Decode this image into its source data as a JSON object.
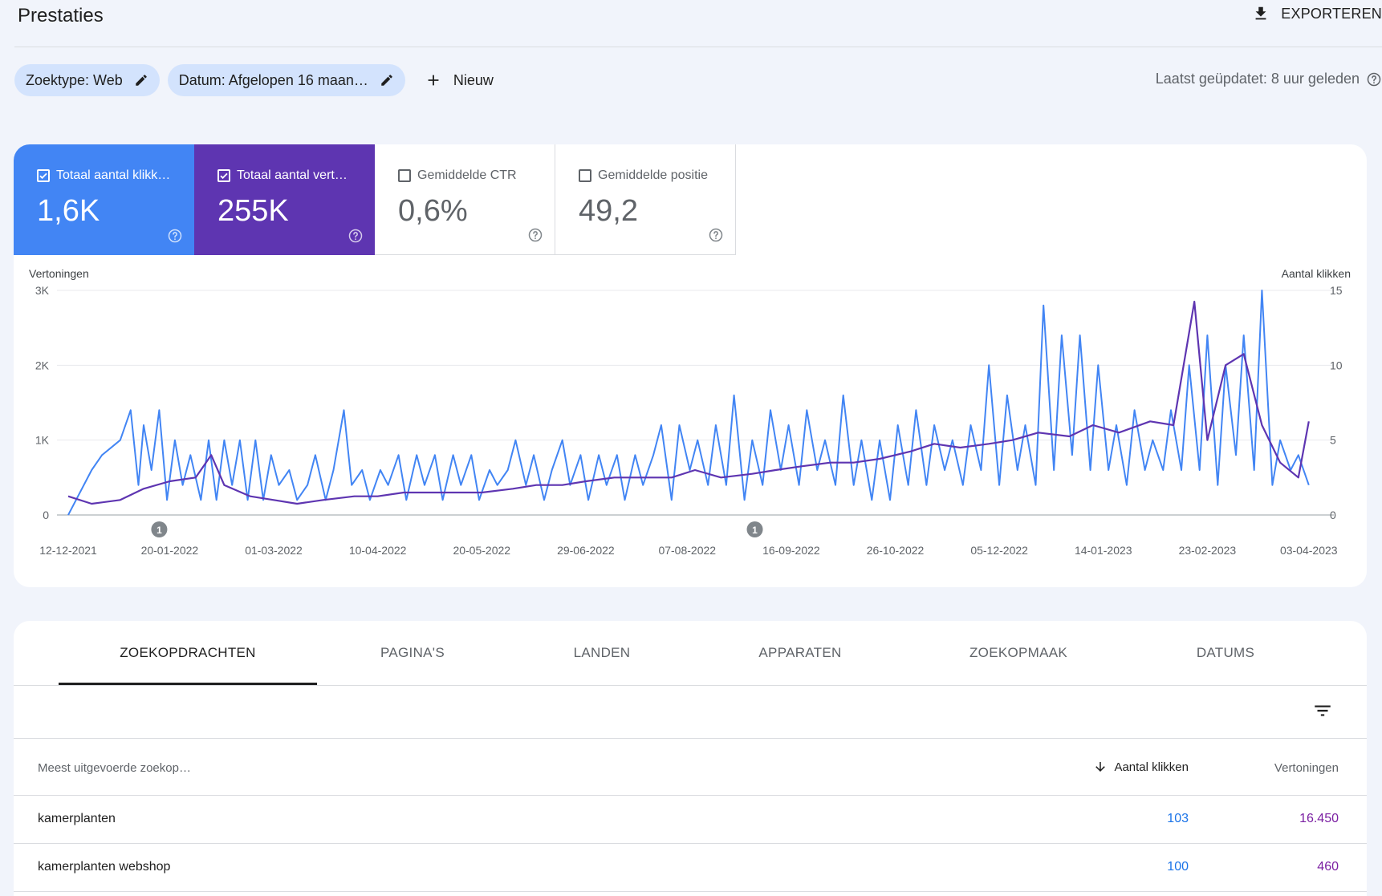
{
  "header": {
    "title": "Prestaties",
    "export_label": "EXPORTEREN"
  },
  "filters": {
    "search_type": "Zoektype: Web",
    "date": "Datum: Afgelopen 16 maan…",
    "new_label": "Nieuw",
    "last_updated": "Laatst geüpdatet: 8 uur geleden"
  },
  "metrics": [
    {
      "label": "Totaal aantal klikk…",
      "value": "1,6K",
      "checked": true,
      "color": "#4285f4"
    },
    {
      "label": "Totaal aantal vert…",
      "value": "255K",
      "checked": true,
      "color": "#5e35b1"
    },
    {
      "label": "Gemiddelde CTR",
      "value": "0,6%",
      "checked": false
    },
    {
      "label": "Gemiddelde positie",
      "value": "49,2",
      "checked": false
    }
  ],
  "chart_data": {
    "type": "line",
    "ylabel_left": "Vertoningen",
    "ylabel_right": "Aantal klikken",
    "y_left_ticks": [
      "0",
      "1K",
      "2K",
      "3K"
    ],
    "y_right_ticks": [
      "0",
      "5",
      "10",
      "15"
    ],
    "ylim_left": [
      0,
      3000
    ],
    "ylim_right": [
      0,
      15
    ],
    "x_ticks": [
      "12-12-2021",
      "20-01-2022",
      "01-03-2022",
      "10-04-2022",
      "20-05-2022",
      "29-06-2022",
      "07-08-2022",
      "16-09-2022",
      "26-10-2022",
      "05-12-2022",
      "14-01-2023",
      "23-02-2023",
      "03-04-2023"
    ],
    "x_range": [
      "12-12-2021",
      "04-04-2023"
    ],
    "annotations": [
      {
        "date": "16-01-2022",
        "label": "1"
      },
      {
        "date": "02-09-2022",
        "label": "1"
      }
    ],
    "grid": true,
    "series": [
      {
        "name": "Aantal klikken",
        "axis": "right",
        "color": "#4285f4",
        "points": [
          [
            "12-12-2021",
            0
          ],
          [
            "21-12-2021",
            3
          ],
          [
            "25-12-2021",
            4
          ],
          [
            "01-01-2022",
            5
          ],
          [
            "05-01-2022",
            7
          ],
          [
            "08-01-2022",
            2
          ],
          [
            "10-01-2022",
            6
          ],
          [
            "13-01-2022",
            3
          ],
          [
            "16-01-2022",
            7
          ],
          [
            "19-01-2022",
            1
          ],
          [
            "22-01-2022",
            5
          ],
          [
            "25-01-2022",
            2
          ],
          [
            "28-01-2022",
            4
          ],
          [
            "01-02-2022",
            1
          ],
          [
            "04-02-2022",
            5
          ],
          [
            "07-02-2022",
            1
          ],
          [
            "10-02-2022",
            5
          ],
          [
            "13-02-2022",
            2
          ],
          [
            "16-02-2022",
            5
          ],
          [
            "19-02-2022",
            1
          ],
          [
            "22-02-2022",
            5
          ],
          [
            "25-02-2022",
            1
          ],
          [
            "28-02-2022",
            4
          ],
          [
            "03-03-2022",
            2
          ],
          [
            "07-03-2022",
            3
          ],
          [
            "10-03-2022",
            1
          ],
          [
            "14-03-2022",
            2
          ],
          [
            "17-03-2022",
            4
          ],
          [
            "21-03-2022",
            1
          ],
          [
            "24-03-2022",
            3
          ],
          [
            "28-03-2022",
            7
          ],
          [
            "31-03-2022",
            2
          ],
          [
            "04-04-2022",
            3
          ],
          [
            "07-04-2022",
            1
          ],
          [
            "11-04-2022",
            3
          ],
          [
            "14-04-2022",
            2
          ],
          [
            "18-04-2022",
            4
          ],
          [
            "21-04-2022",
            1
          ],
          [
            "25-04-2022",
            4
          ],
          [
            "28-04-2022",
            2
          ],
          [
            "02-05-2022",
            4
          ],
          [
            "05-05-2022",
            1
          ],
          [
            "09-05-2022",
            4
          ],
          [
            "12-05-2022",
            2
          ],
          [
            "16-05-2022",
            4
          ],
          [
            "19-05-2022",
            1
          ],
          [
            "23-05-2022",
            3
          ],
          [
            "26-05-2022",
            2
          ],
          [
            "30-05-2022",
            3
          ],
          [
            "02-06-2022",
            5
          ],
          [
            "06-06-2022",
            2
          ],
          [
            "09-06-2022",
            4
          ],
          [
            "13-06-2022",
            1
          ],
          [
            "16-06-2022",
            3
          ],
          [
            "20-06-2022",
            5
          ],
          [
            "23-06-2022",
            2
          ],
          [
            "27-06-2022",
            4
          ],
          [
            "30-06-2022",
            1
          ],
          [
            "04-07-2022",
            4
          ],
          [
            "07-07-2022",
            2
          ],
          [
            "11-07-2022",
            4
          ],
          [
            "14-07-2022",
            1
          ],
          [
            "18-07-2022",
            4
          ],
          [
            "21-07-2022",
            2
          ],
          [
            "25-07-2022",
            4
          ],
          [
            "28-07-2022",
            6
          ],
          [
            "01-08-2022",
            1
          ],
          [
            "04-08-2022",
            6
          ],
          [
            "08-08-2022",
            3
          ],
          [
            "11-08-2022",
            5
          ],
          [
            "15-08-2022",
            2
          ],
          [
            "18-08-2022",
            6
          ],
          [
            "22-08-2022",
            2
          ],
          [
            "25-08-2022",
            8
          ],
          [
            "29-08-2022",
            1
          ],
          [
            "01-09-2022",
            5
          ],
          [
            "05-09-2022",
            2
          ],
          [
            "08-09-2022",
            7
          ],
          [
            "12-09-2022",
            3
          ],
          [
            "15-09-2022",
            6
          ],
          [
            "19-09-2022",
            2
          ],
          [
            "22-09-2022",
            7
          ],
          [
            "26-09-2022",
            3
          ],
          [
            "29-09-2022",
            5
          ],
          [
            "03-10-2022",
            2
          ],
          [
            "06-10-2022",
            8
          ],
          [
            "10-10-2022",
            2
          ],
          [
            "13-10-2022",
            5
          ],
          [
            "17-10-2022",
            1
          ],
          [
            "20-10-2022",
            5
          ],
          [
            "24-10-2022",
            1
          ],
          [
            "27-10-2022",
            6
          ],
          [
            "31-10-2022",
            2
          ],
          [
            "03-11-2022",
            7
          ],
          [
            "07-11-2022",
            2
          ],
          [
            "10-11-2022",
            6
          ],
          [
            "14-11-2022",
            3
          ],
          [
            "17-11-2022",
            5
          ],
          [
            "21-11-2022",
            2
          ],
          [
            "24-11-2022",
            6
          ],
          [
            "28-11-2022",
            3
          ],
          [
            "01-12-2022",
            10
          ],
          [
            "05-12-2022",
            2
          ],
          [
            "08-12-2022",
            8
          ],
          [
            "12-12-2022",
            3
          ],
          [
            "15-12-2022",
            6
          ],
          [
            "19-12-2022",
            2
          ],
          [
            "22-12-2022",
            14
          ],
          [
            "26-12-2022",
            3
          ],
          [
            "29-12-2022",
            12
          ],
          [
            "02-01-2023",
            4
          ],
          [
            "05-01-2023",
            12
          ],
          [
            "09-01-2023",
            3
          ],
          [
            "12-01-2023",
            10
          ],
          [
            "16-01-2023",
            3
          ],
          [
            "19-01-2023",
            6
          ],
          [
            "23-01-2023",
            2
          ],
          [
            "26-01-2023",
            7
          ],
          [
            "30-01-2023",
            3
          ],
          [
            "02-02-2023",
            5
          ],
          [
            "06-02-2023",
            3
          ],
          [
            "09-02-2023",
            7
          ],
          [
            "13-02-2023",
            3
          ],
          [
            "16-02-2023",
            10
          ],
          [
            "20-02-2023",
            3
          ],
          [
            "23-02-2023",
            12
          ],
          [
            "27-02-2023",
            2
          ],
          [
            "02-03-2023",
            10
          ],
          [
            "06-03-2023",
            4
          ],
          [
            "09-03-2023",
            12
          ],
          [
            "13-03-2023",
            3
          ],
          [
            "16-03-2023",
            15
          ],
          [
            "20-03-2023",
            2
          ],
          [
            "23-03-2023",
            5
          ],
          [
            "27-03-2023",
            3
          ],
          [
            "30-03-2023",
            4
          ],
          [
            "03-04-2023",
            2
          ]
        ]
      },
      {
        "name": "Vertoningen",
        "axis": "left",
        "color": "#5e35b1",
        "points": [
          [
            "12-12-2021",
            250
          ],
          [
            "21-12-2021",
            150
          ],
          [
            "01-01-2022",
            200
          ],
          [
            "10-01-2022",
            350
          ],
          [
            "20-01-2022",
            450
          ],
          [
            "30-01-2022",
            500
          ],
          [
            "05-02-2022",
            800
          ],
          [
            "10-02-2022",
            400
          ],
          [
            "20-02-2022",
            250
          ],
          [
            "01-03-2022",
            200
          ],
          [
            "10-03-2022",
            150
          ],
          [
            "20-03-2022",
            200
          ],
          [
            "01-04-2022",
            250
          ],
          [
            "10-04-2022",
            250
          ],
          [
            "20-04-2022",
            300
          ],
          [
            "01-05-2022",
            300
          ],
          [
            "10-05-2022",
            300
          ],
          [
            "20-05-2022",
            300
          ],
          [
            "01-06-2022",
            350
          ],
          [
            "10-06-2022",
            400
          ],
          [
            "20-06-2022",
            400
          ],
          [
            "29-06-2022",
            450
          ],
          [
            "10-07-2022",
            500
          ],
          [
            "20-07-2022",
            500
          ],
          [
            "01-08-2022",
            500
          ],
          [
            "10-08-2022",
            600
          ],
          [
            "20-08-2022",
            500
          ],
          [
            "01-09-2022",
            550
          ],
          [
            "10-09-2022",
            600
          ],
          [
            "20-09-2022",
            650
          ],
          [
            "01-10-2022",
            700
          ],
          [
            "10-10-2022",
            700
          ],
          [
            "20-10-2022",
            750
          ],
          [
            "01-11-2022",
            850
          ],
          [
            "10-11-2022",
            950
          ],
          [
            "20-11-2022",
            900
          ],
          [
            "01-12-2022",
            950
          ],
          [
            "10-12-2022",
            1000
          ],
          [
            "20-12-2022",
            1100
          ],
          [
            "01-01-2023",
            1050
          ],
          [
            "10-01-2023",
            1200
          ],
          [
            "20-01-2023",
            1100
          ],
          [
            "01-02-2023",
            1250
          ],
          [
            "10-02-2023",
            1200
          ],
          [
            "18-02-2023",
            2850
          ],
          [
            "23-02-2023",
            1000
          ],
          [
            "02-03-2023",
            2000
          ],
          [
            "09-03-2023",
            2150
          ],
          [
            "16-03-2023",
            1200
          ],
          [
            "23-03-2023",
            700
          ],
          [
            "30-03-2023",
            500
          ],
          [
            "03-04-2023",
            1250
          ]
        ]
      }
    ]
  },
  "tabs": [
    {
      "label": "ZOEKOPDRACHTEN",
      "active": true
    },
    {
      "label": "PAGINA'S"
    },
    {
      "label": "LANDEN"
    },
    {
      "label": "APPARATEN"
    },
    {
      "label": "ZOEKOPMAAK"
    },
    {
      "label": "DATUMS"
    }
  ],
  "table": {
    "col_query": "Meest uitgevoerde zoekop…",
    "col_clicks": "Aantal klikken",
    "col_impressions": "Vertoningen",
    "rows": [
      {
        "query": "kamerplanten",
        "clicks": "103",
        "impressions": "16.450"
      },
      {
        "query": "kamerplanten webshop",
        "clicks": "100",
        "impressions": "460"
      }
    ]
  }
}
